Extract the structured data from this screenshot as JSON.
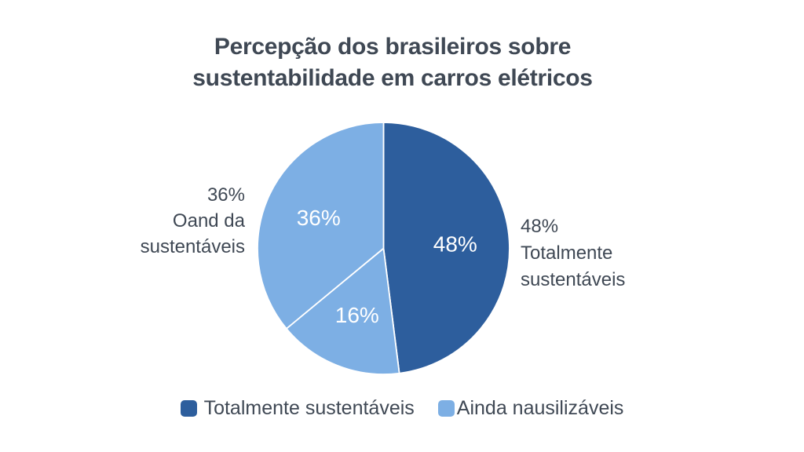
{
  "title": {
    "lines": [
      "Percepção dos brasileiros sobre",
      "sustentabilidade em carros elétricos"
    ]
  },
  "colors": {
    "dark_blue": "#2d5e9d",
    "light_blue": "#7dafe4",
    "text": "#3f4854",
    "slice_border": "#ffffff",
    "background": "#ffffff"
  },
  "chart_data": {
    "type": "pie",
    "title": "Percepção dos brasileiros sobre sustentabilidade em carros elétricos",
    "start_angle_deg": 0,
    "direction": "clockwise",
    "legend_position": "bottom",
    "slices": [
      {
        "label": "Totalmente sustentáveis",
        "value": 48,
        "display": "48%",
        "color": "#2d5e9d",
        "label_color": "#ffffff"
      },
      {
        "label": "Ainda nausilizáveis",
        "value": 16,
        "display": "16%",
        "color": "#7dafe4",
        "label_color": "#ffffff"
      },
      {
        "label": "Ainda nausilizáveis",
        "value": 36,
        "display": "36%",
        "color": "#7dafe4",
        "label_color": "#ffffff"
      }
    ]
  },
  "callouts": {
    "left": {
      "lines": [
        "36%",
        "Oand da",
        "sustentáveis"
      ]
    },
    "right": {
      "lines": [
        "48%",
        "Totalmente",
        "sustentáveis"
      ]
    }
  },
  "legend": {
    "items": [
      {
        "label": "Totalmente sustentáveis",
        "color": "#2d5e9d"
      },
      {
        "label": "Ainda nausilizáveis",
        "color": "#7dafe4"
      }
    ]
  }
}
